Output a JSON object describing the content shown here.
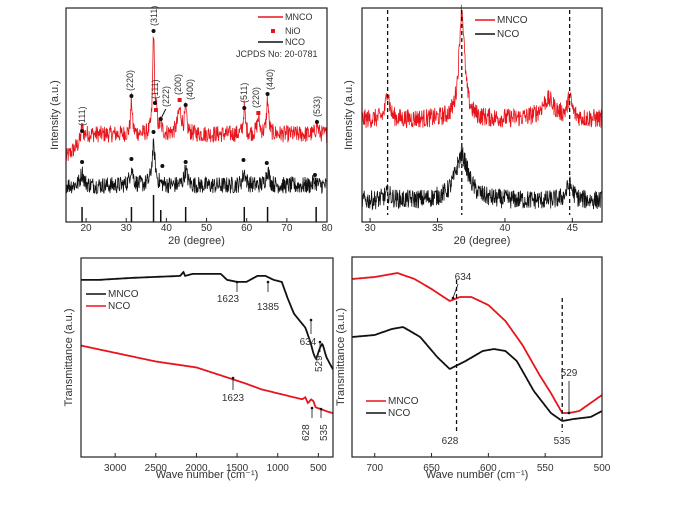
{
  "colors": {
    "red": "#e8141b",
    "black": "#111111"
  },
  "chart_data": [
    {
      "type": "line",
      "panel": "top-left",
      "xlabel": "2θ (degree)",
      "ylabel": "Intensity (a.u.)",
      "xlim": [
        15,
        80
      ],
      "ylim": [
        0,
        100
      ],
      "xticks": [
        "20",
        "30",
        "40",
        "50",
        "60",
        "70",
        "80"
      ],
      "legend": {
        "placement": "top-right",
        "entries": [
          "MNCO",
          "NiO",
          "NCO"
        ],
        "note": "JCPDS No: 20-0781"
      },
      "series": [
        {
          "name": "MNCO",
          "color": "#e8141b",
          "baseline": [
            [
              15,
              30
            ],
            [
              18,
              36
            ],
            [
              20,
              41
            ],
            [
              80,
              41
            ]
          ],
          "peaks": [
            [
              19,
              6,
              0.3
            ],
            [
              31.3,
              16,
              0.25
            ],
            [
              36.8,
              47,
              0.25
            ],
            [
              37.5,
              8,
              0.3
            ],
            [
              38.6,
              4,
              0.3
            ],
            [
              43.3,
              11,
              0.6
            ],
            [
              44.8,
              10,
              0.3
            ],
            [
              59.4,
              12,
              0.3
            ],
            [
              62.9,
              7,
              0.4
            ],
            [
              65.2,
              16,
              0.3
            ],
            [
              77.5,
              5,
              0.3
            ]
          ]
        },
        {
          "name": "NCO",
          "color": "#111111",
          "baseline": [
            [
              15,
              17
            ],
            [
              80,
              17
            ]
          ],
          "peaks": [
            [
              19,
              6,
              0.5
            ],
            [
              31.3,
              8,
              0.5
            ],
            [
              36.8,
              18,
              0.5
            ],
            [
              44.8,
              7,
              0.5
            ],
            [
              59.4,
              6,
              0.5
            ],
            [
              65.2,
              7,
              0.5
            ],
            [
              77,
              2,
              0.5
            ]
          ]
        }
      ],
      "reference_lines": [
        19,
        31.3,
        36.8,
        38.6,
        44.8,
        59.4,
        65.2,
        77.3
      ],
      "peak_labels": [
        {
          "x": 19,
          "label": "(111)",
          "phase": "spinel"
        },
        {
          "x": 31.3,
          "label": "(220)",
          "phase": "spinel"
        },
        {
          "x": 36.8,
          "label": "(311)",
          "phase": "spinel"
        },
        {
          "x": 37.4,
          "label": "(111)",
          "phase": "NiO"
        },
        {
          "x": 38.6,
          "label": "(222)",
          "phase": "spinel"
        },
        {
          "x": 43.3,
          "label": "(200)",
          "phase": "NiO"
        },
        {
          "x": 44.8,
          "label": "(400)",
          "phase": "spinel"
        },
        {
          "x": 59.4,
          "label": "(511)",
          "phase": "spinel"
        },
        {
          "x": 62.9,
          "label": "(220)",
          "phase": "NiO"
        },
        {
          "x": 65.2,
          "label": "(440)",
          "phase": "spinel"
        },
        {
          "x": 77.5,
          "label": "(533)",
          "phase": "spinel"
        }
      ],
      "nco_markers": [
        19,
        31.3,
        36.8,
        39,
        44.8,
        59.2,
        65,
        77
      ]
    },
    {
      "type": "line",
      "panel": "top-right",
      "xlabel": "2θ (degree)",
      "ylabel": "Intensity (a.u.)",
      "xlim": [
        29.4,
        47.2
      ],
      "ylim": [
        0,
        100
      ],
      "xticks": [
        "30",
        "35",
        "40",
        "45"
      ],
      "legend": {
        "placement": "top-right",
        "entries": [
          "MNCO",
          "NCO"
        ]
      },
      "series": [
        {
          "name": "MNCO",
          "color": "#e8141b",
          "baseline": [
            [
              29.4,
              48
            ],
            [
              47.2,
              48
            ]
          ],
          "peaks": [
            [
              31.3,
              14,
              0.15
            ],
            [
              36.8,
              51,
              0.25
            ],
            [
              43.2,
              9,
              0.6
            ],
            [
              44.8,
              9,
              0.2
            ]
          ]
        },
        {
          "name": "NCO",
          "color": "#111111",
          "baseline": [
            [
              29.4,
              10
            ],
            [
              47.2,
              10
            ]
          ],
          "peaks": [
            [
              31.3,
              3,
              0.3
            ],
            [
              36.8,
              21,
              0.6
            ],
            [
              44.8,
              7,
              0.3
            ]
          ]
        }
      ],
      "dashed_lines": [
        31.3,
        36.8,
        44.8
      ]
    },
    {
      "type": "line",
      "panel": "bottom-left",
      "xlabel": "Wave number (cm⁻¹)",
      "ylabel": "Transmittance (a.u.)",
      "xlim": [
        3420,
        320
      ],
      "ylim": [
        0,
        100
      ],
      "xticks": [
        "3000",
        "2500",
        "2000",
        "1500",
        "1000",
        "500"
      ],
      "legend": {
        "placement": "upper-left",
        "entries": [
          "MNCO",
          "NCO"
        ]
      },
      "series": [
        {
          "name": "MNCO",
          "color": "#111111",
          "points": [
            [
              3420,
              89
            ],
            [
              3200,
              89
            ],
            [
              2800,
              90
            ],
            [
              2200,
              91
            ],
            [
              2160,
              93
            ],
            [
              2140,
              91
            ],
            [
              2050,
              92
            ],
            [
              1700,
              92
            ],
            [
              1623,
              89
            ],
            [
              1500,
              88
            ],
            [
              1385,
              88
            ],
            [
              1250,
              91
            ],
            [
              1150,
              91
            ],
            [
              1050,
              89
            ],
            [
              950,
              88
            ],
            [
              880,
              80
            ],
            [
              800,
              72
            ],
            [
              700,
              67
            ],
            [
              660,
              65
            ],
            [
              634,
              62
            ],
            [
              600,
              58
            ],
            [
              560,
              52
            ],
            [
              529,
              49
            ],
            [
              480,
              55
            ],
            [
              450,
              57
            ],
            [
              400,
              50
            ],
            [
              320,
              44
            ]
          ]
        },
        {
          "name": "NCO",
          "color": "#e8141b",
          "points": [
            [
              3420,
              56
            ],
            [
              2500,
              48
            ],
            [
              2000,
              45
            ],
            [
              1623,
              40
            ],
            [
              1400,
              37
            ],
            [
              1200,
              34
            ],
            [
              1000,
              32
            ],
            [
              700,
              29
            ],
            [
              660,
              30
            ],
            [
              628,
              27
            ],
            [
              590,
              29
            ],
            [
              560,
              28
            ],
            [
              535,
              25
            ],
            [
              400,
              23
            ],
            [
              320,
              22
            ]
          ]
        }
      ],
      "annotations": [
        {
          "label": "1623",
          "x": 1623,
          "series": "MNCO"
        },
        {
          "label": "1385",
          "x": 1385,
          "series": "MNCO"
        },
        {
          "label": "634",
          "x": 634,
          "series": "MNCO"
        },
        {
          "label": "529",
          "x": 529,
          "series": "MNCO"
        },
        {
          "label": "1623",
          "x": 1623,
          "series": "NCO"
        },
        {
          "label": "628",
          "x": 628,
          "series": "NCO"
        },
        {
          "label": "535",
          "x": 535,
          "series": "NCO"
        }
      ]
    },
    {
      "type": "line",
      "panel": "bottom-right",
      "xlabel": "Wave number (cm⁻¹)",
      "ylabel": "Transmittance (a.u.)",
      "xlim": [
        720,
        500
      ],
      "ylim": [
        0,
        100
      ],
      "xticks": [
        "700",
        "650",
        "600",
        "550",
        "500"
      ],
      "legend": {
        "placement": "lower-left",
        "entries": [
          "MNCO",
          "NCO"
        ]
      },
      "series": [
        {
          "name": "MNCO",
          "color": "#e8141b",
          "points": [
            [
              720,
              89
            ],
            [
              700,
              90
            ],
            [
              680,
              92
            ],
            [
              665,
              89
            ],
            [
              650,
              84
            ],
            [
              634,
              78
            ],
            [
              625,
              80
            ],
            [
              615,
              80
            ],
            [
              600,
              76
            ],
            [
              585,
              68
            ],
            [
              570,
              56
            ],
            [
              555,
              41
            ],
            [
              545,
              32
            ],
            [
              535,
              22
            ],
            [
              529,
              22
            ],
            [
              520,
              23
            ],
            [
              510,
              27
            ],
            [
              500,
              31
            ]
          ]
        },
        {
          "name": "NCO",
          "color": "#111111",
          "points": [
            [
              720,
              60
            ],
            [
              700,
              61
            ],
            [
              685,
              64
            ],
            [
              675,
              65
            ],
            [
              660,
              60
            ],
            [
              645,
              50
            ],
            [
              634,
              44
            ],
            [
              620,
              48
            ],
            [
              605,
              53
            ],
            [
              595,
              54
            ],
            [
              585,
              53
            ],
            [
              575,
              48
            ],
            [
              560,
              33
            ],
            [
              545,
              22
            ],
            [
              535,
              18
            ],
            [
              525,
              19
            ],
            [
              510,
              20
            ],
            [
              500,
              23
            ]
          ]
        }
      ],
      "dashed_lines": [
        628,
        535
      ],
      "annotations": [
        {
          "label": "634",
          "x": 634,
          "series": "MNCO"
        },
        {
          "label": "628",
          "x": 628,
          "series": "NCO"
        },
        {
          "label": "535",
          "x": 535,
          "series": "NCO"
        },
        {
          "label": "529",
          "x": 529,
          "series": "MNCO"
        }
      ]
    }
  ]
}
